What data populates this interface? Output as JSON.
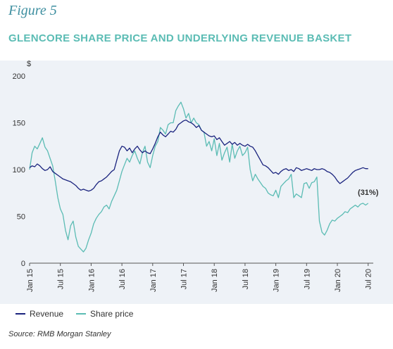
{
  "figure_label": "Figure 5",
  "title": "GLENCORE SHARE PRICE AND UNDERLYING REVENUE BASKET",
  "source": "Source: RMB Morgan Stanley",
  "colors": {
    "revenue": "#1a237e",
    "share_price": "#5bbcb4",
    "background": "#eef2f7"
  },
  "chart_data": {
    "type": "line",
    "title": "GLENCORE SHARE PRICE AND UNDERLYING REVENUE BASKET",
    "ylabel": "$",
    "ylim": [
      0,
      200
    ],
    "yticks": [
      0,
      50,
      100,
      150,
      200
    ],
    "xlim": [
      0,
      67
    ],
    "xticks": [
      {
        "label": "Jan 15",
        "x": 0
      },
      {
        "label": "Jul 15",
        "x": 6
      },
      {
        "label": "Jan 16",
        "x": 12
      },
      {
        "label": "Jul 16",
        "x": 18
      },
      {
        "label": "Jan 17",
        "x": 24
      },
      {
        "label": "Jul 17",
        "x": 30
      },
      {
        "label": "Jan 18",
        "x": 36
      },
      {
        "label": "Jul 18",
        "x": 42
      },
      {
        "label": "Jan 19",
        "x": 48
      },
      {
        "label": "Jul 19",
        "x": 54
      },
      {
        "label": "Jan 20",
        "x": 60
      },
      {
        "label": "Jul 20",
        "x": 66
      }
    ],
    "grid": false,
    "legend_position": "bottom-left",
    "annotation": {
      "text": "(31%)",
      "x": 66,
      "y": 73
    },
    "series": [
      {
        "name": "Revenue",
        "color": "#1a237e",
        "x": [
          0,
          0.5,
          1,
          1.5,
          2,
          2.5,
          3,
          3.5,
          4,
          4.5,
          5,
          5.5,
          6,
          6.5,
          7,
          7.5,
          8,
          8.5,
          9,
          9.5,
          10,
          10.5,
          11,
          11.5,
          12,
          12.5,
          13,
          13.5,
          14,
          14.5,
          15,
          15.5,
          16,
          16.5,
          17,
          17.5,
          18,
          18.5,
          19,
          19.5,
          20,
          20.5,
          21,
          21.5,
          22,
          22.5,
          23,
          23.5,
          24,
          24.5,
          25,
          25.5,
          26,
          26.5,
          27,
          27.5,
          28,
          28.5,
          29,
          29.5,
          30,
          30.5,
          31,
          31.5,
          32,
          32.5,
          33,
          33.5,
          34,
          34.5,
          35,
          35.5,
          36,
          36.5,
          37,
          37.5,
          38,
          38.5,
          39,
          39.5,
          40,
          40.5,
          41,
          41.5,
          42,
          42.5,
          43,
          43.5,
          44,
          44.5,
          45,
          45.5,
          46,
          46.5,
          47,
          47.5,
          48,
          48.5,
          49,
          49.5,
          50,
          50.5,
          51,
          51.5,
          52,
          52.5,
          53,
          53.5,
          54,
          54.5,
          55,
          55.5,
          56,
          56.5,
          57,
          57.5,
          58,
          58.5,
          59,
          59.5,
          60,
          60.5,
          61,
          61.5,
          62,
          62.5,
          63,
          63.5,
          64,
          64.5,
          65,
          65.5,
          66
        ],
        "values": [
          102,
          104,
          103,
          106,
          104,
          101,
          99,
          100,
          103,
          98,
          96,
          94,
          92,
          90,
          89,
          88,
          87,
          85,
          83,
          80,
          78,
          79,
          78,
          77,
          78,
          80,
          84,
          87,
          88,
          90,
          92,
          95,
          98,
          100,
          110,
          120,
          125,
          124,
          120,
          123,
          118,
          122,
          125,
          121,
          118,
          120,
          118,
          117,
          122,
          128,
          135,
          140,
          137,
          135,
          138,
          141,
          140,
          143,
          148,
          150,
          152,
          153,
          151,
          150,
          148,
          145,
          147,
          142,
          140,
          138,
          136,
          135,
          136,
          132,
          134,
          130,
          126,
          128,
          130,
          127,
          129,
          126,
          128,
          126,
          125,
          127,
          125,
          124,
          120,
          115,
          110,
          105,
          104,
          102,
          99,
          96,
          97,
          95,
          98,
          100,
          101,
          99,
          100,
          98,
          102,
          101,
          99,
          100,
          101,
          100,
          99,
          101,
          100,
          100,
          101,
          100,
          98,
          97,
          95,
          92,
          88,
          85,
          87,
          89,
          91,
          94,
          97,
          99,
          100,
          101,
          102,
          101,
          101
        ]
      },
      {
        "name": "Share price",
        "color": "#5bbcb4",
        "x": [
          0,
          0.5,
          1,
          1.5,
          2,
          2.5,
          3,
          3.5,
          4,
          4.5,
          5,
          5.5,
          6,
          6.5,
          7,
          7.5,
          8,
          8.5,
          9,
          9.5,
          10,
          10.5,
          11,
          11.5,
          12,
          12.5,
          13,
          13.5,
          14,
          14.5,
          15,
          15.5,
          16,
          16.5,
          17,
          17.5,
          18,
          18.5,
          19,
          19.5,
          20,
          20.5,
          21,
          21.5,
          22,
          22.5,
          23,
          23.5,
          24,
          24.5,
          25,
          25.5,
          26,
          26.5,
          27,
          27.5,
          28,
          28.5,
          29,
          29.5,
          30,
          30.5,
          31,
          31.5,
          32,
          32.5,
          33,
          33.5,
          34,
          34.5,
          35,
          35.5,
          36,
          36.5,
          37,
          37.5,
          38,
          38.5,
          39,
          39.5,
          40,
          40.5,
          41,
          41.5,
          42,
          42.5,
          43,
          43.5,
          44,
          44.5,
          45,
          45.5,
          46,
          46.5,
          47,
          47.5,
          48,
          48.5,
          49,
          49.5,
          50,
          50.5,
          51,
          51.5,
          52,
          52.5,
          53,
          53.5,
          54,
          54.5,
          55,
          55.5,
          56,
          56.5,
          57,
          57.5,
          58,
          58.5,
          59,
          59.5,
          60,
          60.5,
          61,
          61.5,
          62,
          62.5,
          63,
          63.5,
          64,
          64.5,
          65,
          65.5,
          66
        ],
        "values": [
          100,
          118,
          125,
          122,
          128,
          134,
          124,
          120,
          112,
          104,
          88,
          70,
          58,
          52,
          35,
          25,
          40,
          45,
          28,
          18,
          15,
          12,
          16,
          25,
          32,
          42,
          48,
          52,
          55,
          60,
          62,
          58,
          66,
          72,
          78,
          88,
          98,
          105,
          112,
          108,
          115,
          120,
          112,
          106,
          118,
          125,
          108,
          102,
          115,
          125,
          130,
          145,
          142,
          138,
          148,
          150,
          150,
          163,
          168,
          172,
          165,
          155,
          160,
          150,
          155,
          150,
          148,
          142,
          140,
          125,
          130,
          120,
          133,
          115,
          128,
          110,
          118,
          124,
          108,
          127,
          112,
          120,
          125,
          115,
          118,
          124,
          100,
          88,
          95,
          90,
          86,
          82,
          80,
          75,
          73,
          72,
          78,
          70,
          82,
          85,
          88,
          90,
          95,
          70,
          74,
          72,
          70,
          85,
          86,
          80,
          86,
          87,
          92,
          45,
          33,
          30,
          35,
          42,
          46,
          45,
          48,
          50,
          52,
          55,
          54,
          58,
          60,
          62,
          60,
          63,
          64,
          62,
          64
        ]
      }
    ]
  }
}
